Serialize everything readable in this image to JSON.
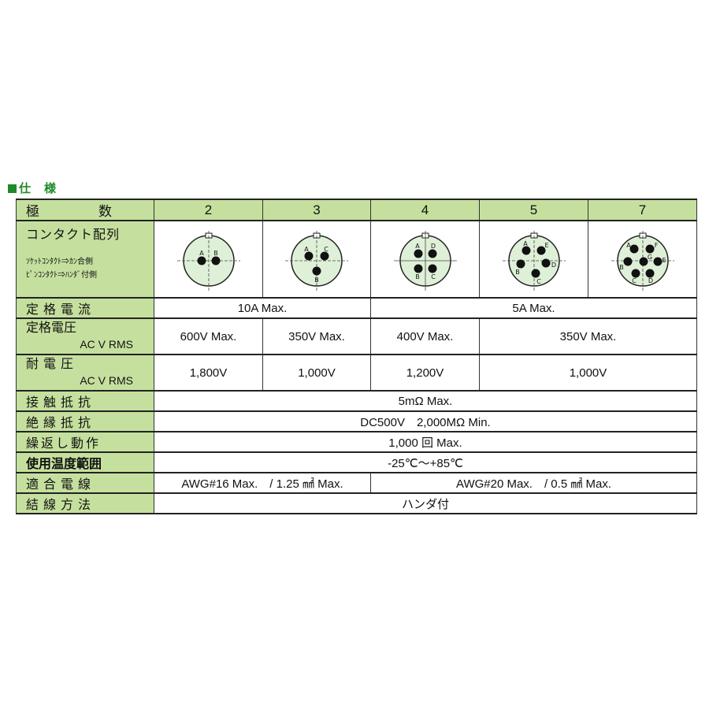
{
  "title": "仕　様",
  "colors": {
    "header_green": "#c5e09e",
    "title_green": "#1f8a2a",
    "diagram_fill": "#dff0d8"
  },
  "header": {
    "label": "極　　　数",
    "poles": [
      "2",
      "3",
      "4",
      "5",
      "7"
    ]
  },
  "contact_layout": {
    "label": "コンタクト配列",
    "note1": "ｿｹｯﾄｺﾝﾀｸﾄ⇒ｶﾝ合側",
    "note2": "ﾋﾟﾝｺﾝﾀｸﾄ⇒ﾊﾝﾀﾞ付側",
    "diagrams": [
      {
        "poles": 2,
        "pins": [
          "A",
          "B"
        ]
      },
      {
        "poles": 3,
        "pins": [
          "A",
          "C",
          "B"
        ]
      },
      {
        "poles": 4,
        "pins": [
          "A",
          "D",
          "B",
          "C"
        ]
      },
      {
        "poles": 5,
        "pins": [
          "A",
          "E",
          "B",
          "D",
          "C"
        ]
      },
      {
        "poles": 7,
        "pins": [
          "A",
          "F",
          "B",
          "G",
          "E",
          "C",
          "D"
        ]
      }
    ]
  },
  "rated_current": {
    "label": "定格電流",
    "values": [
      "10A Max.",
      "5A Max."
    ]
  },
  "rated_voltage": {
    "label": "定格電圧",
    "sub": "AC V RMS",
    "values": [
      "600V Max.",
      "350V Max.",
      "400V Max.",
      "350V Max."
    ]
  },
  "withstand_voltage": {
    "label": "耐電圧",
    "sub": "AC V RMS",
    "values": [
      "1,800V",
      "1,000V",
      "1,200V",
      "1,000V"
    ]
  },
  "contact_resistance": {
    "label": "接触抵抗",
    "value": "5mΩ Max."
  },
  "insulation_resistance": {
    "label": "絶縁抵抗",
    "value": "DC500V　2,000MΩ Min."
  },
  "durability": {
    "label": "繰返し動作",
    "value": "1,000 回 Max."
  },
  "temperature": {
    "label": "使用温度範囲",
    "value": "-25℃～+85℃"
  },
  "wire": {
    "label": "適合電線",
    "values": [
      "AWG#16 Max.　/ 1.25 ㎟ Max.",
      "AWG#20 Max.　/ 0.5 ㎟ Max."
    ]
  },
  "connection": {
    "label": "結線方法",
    "value": "ハンダ付"
  }
}
